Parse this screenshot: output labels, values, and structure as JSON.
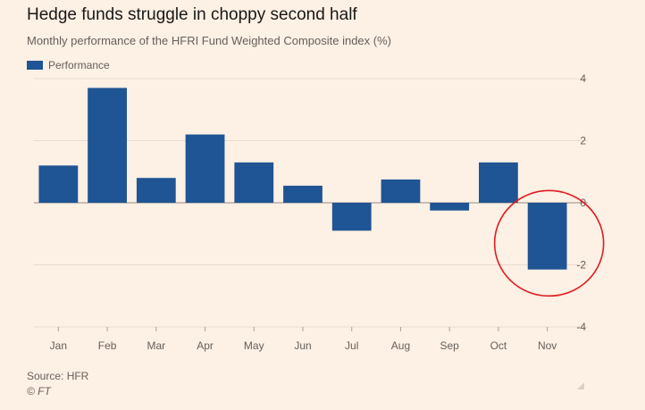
{
  "chart_data": {
    "type": "bar",
    "title": "Hedge funds struggle in choppy second half",
    "subtitle": "Monthly performance of the HFRI Fund Weighted Composite index (%)",
    "categories": [
      "Jan",
      "Feb",
      "Mar",
      "Apr",
      "May",
      "Jun",
      "Jul",
      "Aug",
      "Sep",
      "Oct",
      "Nov"
    ],
    "series": [
      {
        "name": "Performance",
        "values": [
          1.2,
          3.7,
          0.8,
          2.2,
          1.3,
          0.55,
          -0.9,
          0.75,
          -0.25,
          1.3,
          -2.15
        ]
      }
    ],
    "ylim": [
      -4,
      4
    ],
    "yticks": [
      4,
      2,
      0,
      -2,
      -4
    ],
    "ytick_labels": [
      "4",
      "2",
      "0",
      "-2",
      "-4"
    ],
    "grid": true,
    "legend_position": "top-left",
    "bar_color": "#1f5594",
    "annotation": {
      "type": "circle",
      "target": "Nov",
      "color": "#e01b22"
    }
  },
  "footer": {
    "source": "Source: HFR",
    "credit": "© FT"
  }
}
